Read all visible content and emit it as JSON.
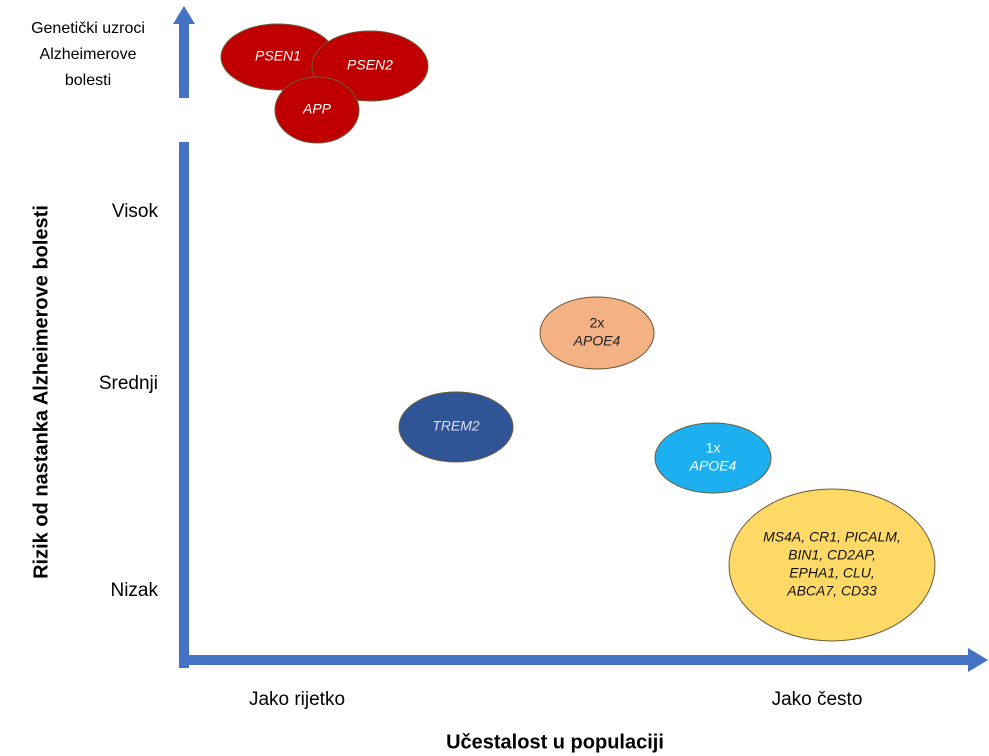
{
  "top_label": [
    "Genetički uzroci",
    "Alzheimerove",
    "bolesti"
  ],
  "y_axis": {
    "title": "Rizik od nastanka Alzheimerove bolesti",
    "levels": [
      "Visok",
      "Srednji",
      "Nizak"
    ]
  },
  "x_axis": {
    "title": "Učestalost u populaciji",
    "levels": [
      "Jako rijetko",
      "Jako često"
    ]
  },
  "nodes": [
    {
      "lines": [
        "PSEN1"
      ]
    },
    {
      "lines": [
        "PSEN2"
      ]
    },
    {
      "lines": [
        "APP"
      ]
    },
    {
      "lines": [
        "2x",
        "APOE4"
      ]
    },
    {
      "lines": [
        "TREM2"
      ]
    },
    {
      "lines": [
        "1x",
        "APOE4"
      ]
    },
    {
      "lines": [
        "MS4A, CR1, PICALM,",
        "BIN1, CD2AP,",
        "EPHA1, CLU,",
        "ABCA7, CD33"
      ]
    }
  ]
}
